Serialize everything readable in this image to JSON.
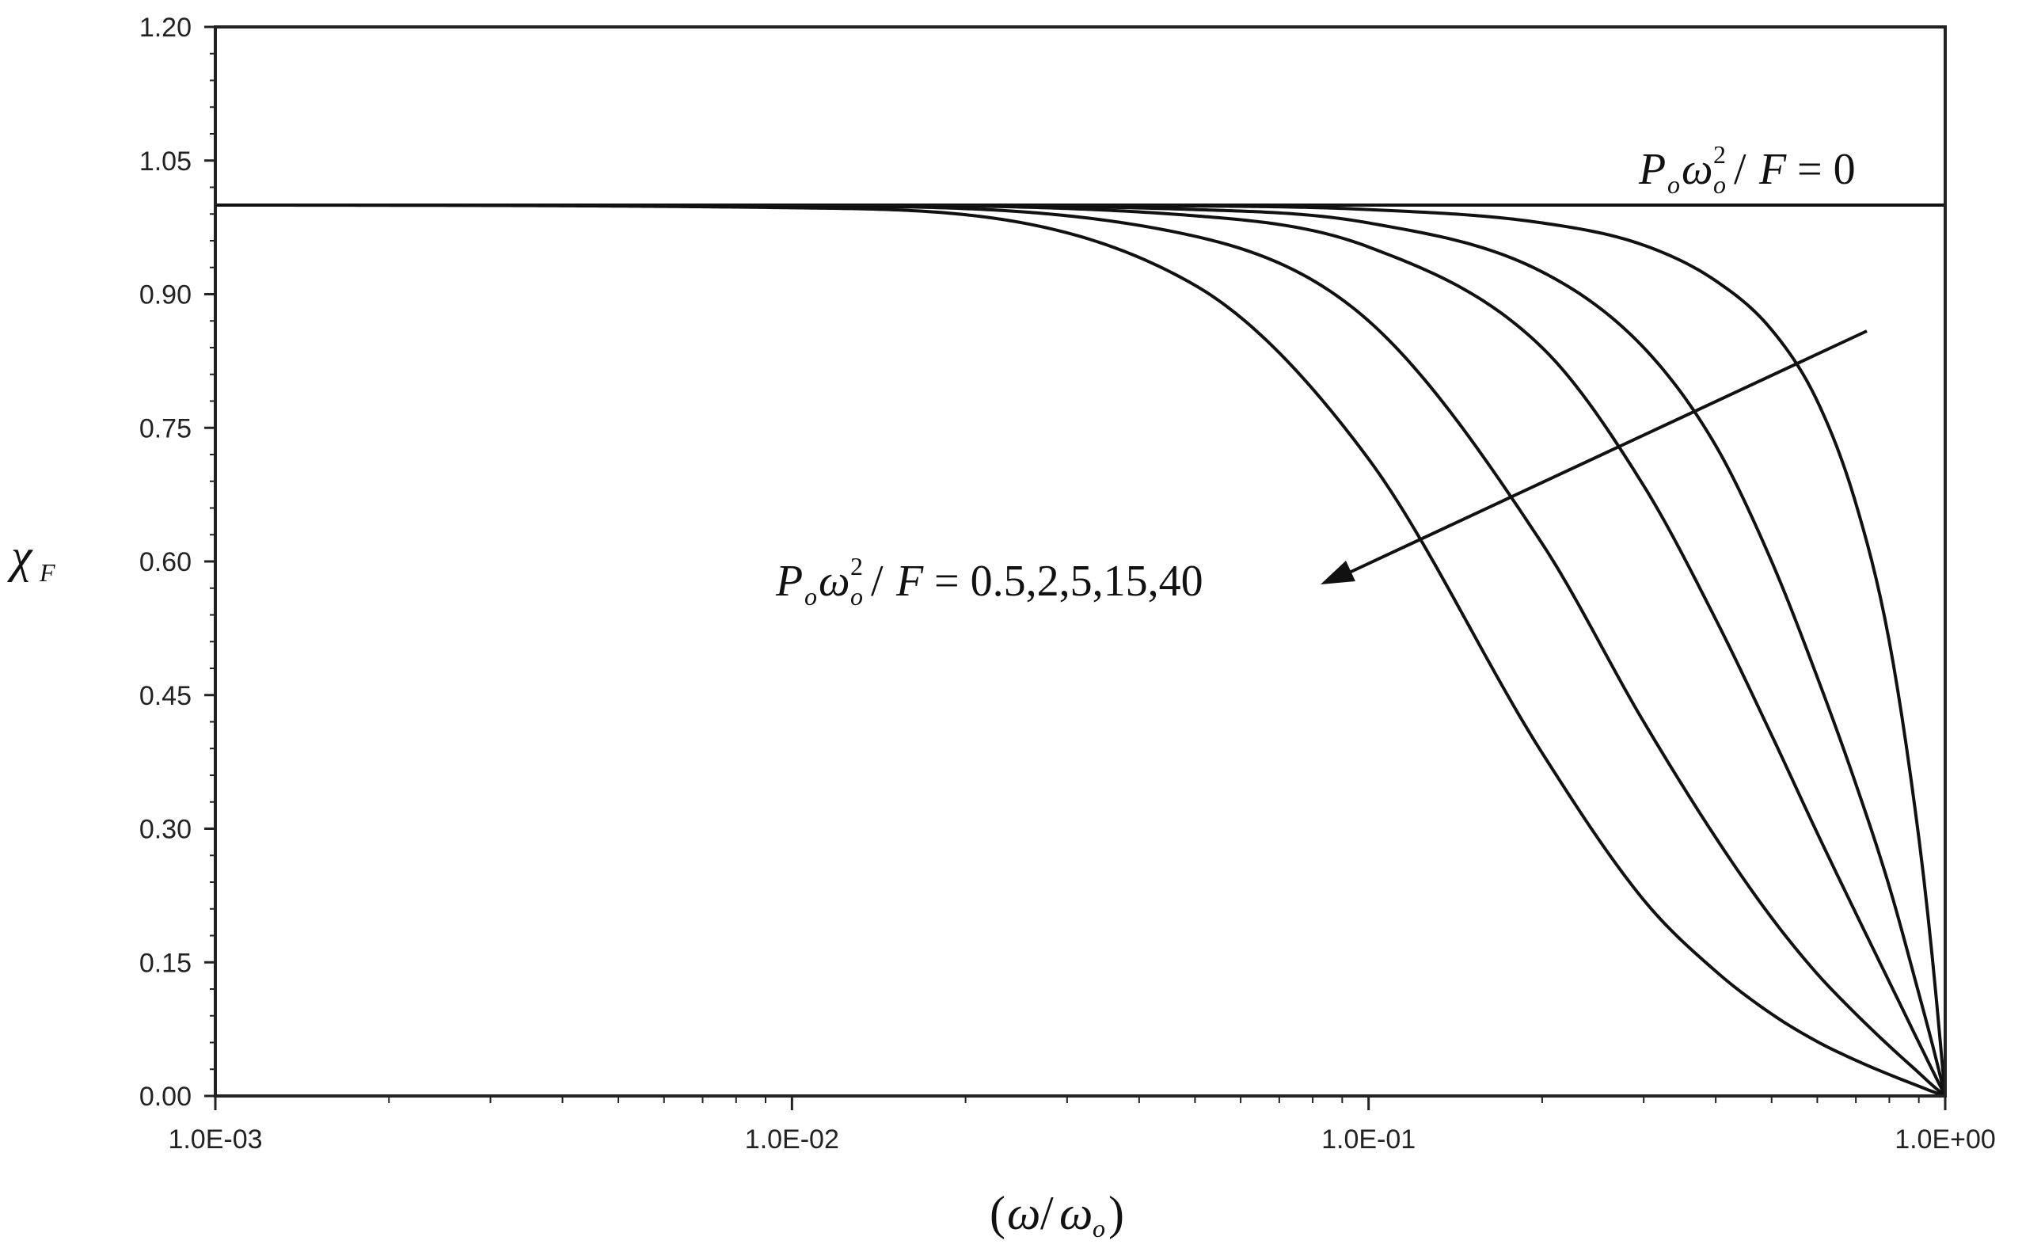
{
  "chart_data": {
    "type": "line",
    "xscale": "log",
    "xlim": [
      0.001,
      1
    ],
    "ylim": [
      0,
      1.2
    ],
    "grid": false,
    "xticks": [
      "1.0E-03",
      "1.0E-02",
      "1.0E-01",
      "1.0E+00"
    ],
    "yticks": [
      "0.00",
      "0.15",
      "0.30",
      "0.45",
      "0.60",
      "0.75",
      "0.90",
      "1.05",
      "1.20"
    ],
    "xlabel": "(ω/ω_o)",
    "ylabel": "χ_F",
    "annotations": [
      {
        "text": "P_o ω_o^2 / F = 0"
      },
      {
        "text": "P_o ω_o^2 / F = 0.5,2,5,15,40"
      }
    ],
    "series": [
      {
        "x": [
          0.001,
          0.01,
          0.1,
          0.5,
          1.0
        ],
        "y": [
          1.0,
          1.0,
          1.0,
          1.0,
          1.0
        ]
      },
      {
        "x": [
          0.001,
          0.01,
          0.05,
          0.1,
          0.2,
          0.3,
          0.4,
          0.5,
          0.6,
          0.7,
          0.8,
          0.9,
          0.95,
          1.0
        ],
        "y": [
          1.0,
          1.0,
          0.999,
          0.995,
          0.98,
          0.955,
          0.915,
          0.86,
          0.78,
          0.665,
          0.51,
          0.29,
          0.155,
          0.0
        ]
      },
      {
        "x": [
          0.001,
          0.01,
          0.05,
          0.1,
          0.2,
          0.3,
          0.4,
          0.5,
          0.6,
          0.7,
          0.8,
          0.9,
          0.95,
          1.0
        ],
        "y": [
          1.0,
          1.0,
          0.995,
          0.98,
          0.925,
          0.84,
          0.73,
          0.6,
          0.47,
          0.35,
          0.235,
          0.115,
          0.058,
          0.0
        ]
      },
      {
        "x": [
          0.001,
          0.01,
          0.05,
          0.1,
          0.2,
          0.3,
          0.4,
          0.5,
          0.6,
          0.7,
          0.8,
          0.9,
          0.95,
          1.0
        ],
        "y": [
          1.0,
          1.0,
          0.988,
          0.953,
          0.84,
          0.685,
          0.535,
          0.405,
          0.295,
          0.205,
          0.128,
          0.06,
          0.029,
          0.0
        ]
      },
      {
        "x": [
          0.001,
          0.01,
          0.05,
          0.1,
          0.2,
          0.3,
          0.4,
          0.5,
          0.6,
          0.7,
          0.8,
          0.9,
          0.95,
          1.0
        ],
        "y": [
          1.0,
          0.999,
          0.965,
          0.87,
          0.62,
          0.42,
          0.29,
          0.2,
          0.137,
          0.092,
          0.056,
          0.026,
          0.012,
          0.0
        ]
      },
      {
        "x": [
          0.001,
          0.01,
          0.05,
          0.1,
          0.2,
          0.3,
          0.4,
          0.5,
          0.6,
          0.7,
          0.8,
          0.9,
          0.95,
          1.0
        ],
        "y": [
          1.0,
          0.997,
          0.91,
          0.715,
          0.385,
          0.22,
          0.14,
          0.092,
          0.061,
          0.04,
          0.024,
          0.011,
          0.005,
          0.0
        ]
      }
    ]
  }
}
